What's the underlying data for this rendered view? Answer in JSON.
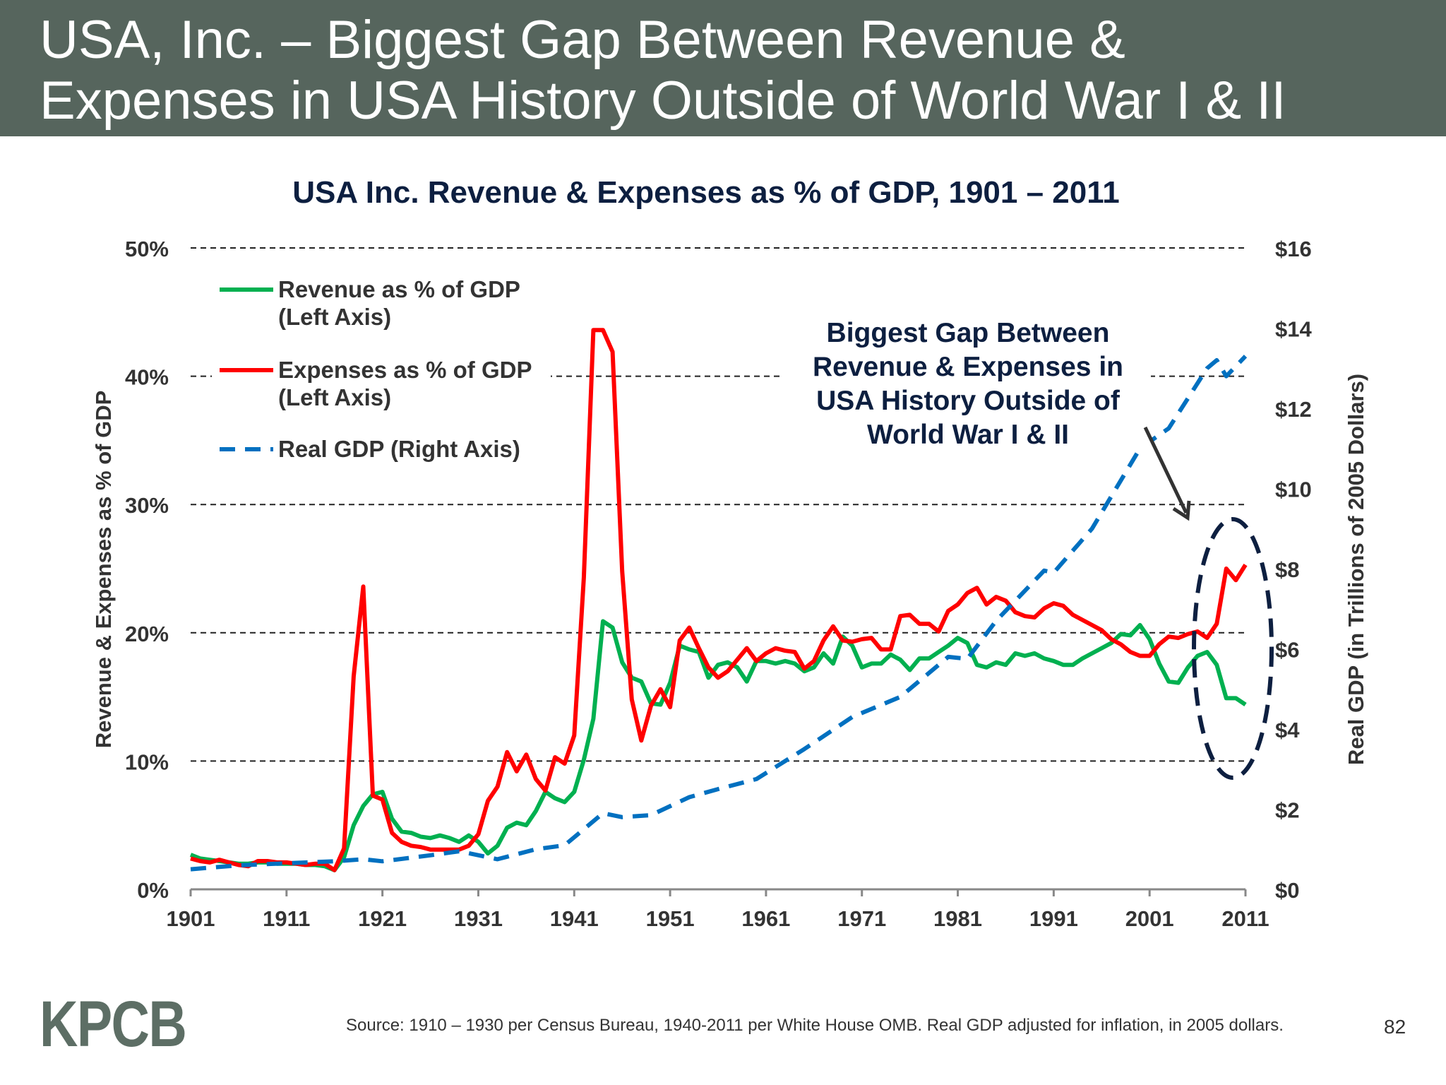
{
  "slide": {
    "title_line1": "USA, Inc. – Biggest Gap Between Revenue &",
    "title_line2": "Expenses in USA History Outside of World War I & II",
    "logo": "KPCB",
    "source": "Source: 1910 – 1930 per Census Bureau, 1940-2011 per White House OMB. Real GDP adjusted for inflation, in 2005 dollars.",
    "page_number": "82",
    "header_color": "#56655d"
  },
  "chart_data": {
    "type": "line",
    "title": "USA Inc. Revenue & Expenses as % of GDP, 1901 – 2011",
    "ylabel": "Revenue & Expenses as % of GDP",
    "y2label": "Real GDP (in Trillions of 2005 Dollars)",
    "xlim": [
      1901,
      2011
    ],
    "ylim": [
      0,
      50
    ],
    "y2lim": [
      0,
      16
    ],
    "x_ticks": [
      "1901",
      "1911",
      "1921",
      "1931",
      "1941",
      "1951",
      "1961",
      "1971",
      "1981",
      "1991",
      "2001",
      "2011"
    ],
    "y_ticks": [
      "0%",
      "10%",
      "20%",
      "30%",
      "40%",
      "50%"
    ],
    "y2_ticks": [
      "$0",
      "$2",
      "$4",
      "$6",
      "$8",
      "$10",
      "$12",
      "$14",
      "$16"
    ],
    "grid": "horizontal dashed",
    "legend_position": "top-left",
    "annotation": [
      "Biggest Gap Between",
      "Revenue & Expenses in",
      "USA History Outside of",
      "World War I & II"
    ],
    "series": [
      {
        "name": "Revenue as % of GDP",
        "name_line2": "(Left Axis)",
        "color": "#00b050",
        "axis": "left",
        "start_year": 1901,
        "values": [
          2.7,
          2.4,
          2.3,
          2.2,
          2.1,
          2.0,
          2.0,
          2.1,
          2.1,
          2.0,
          2.0,
          2.0,
          1.9,
          1.9,
          1.8,
          1.5,
          2.5,
          5.0,
          6.5,
          7.4,
          7.6,
          5.5,
          4.5,
          4.4,
          4.1,
          4.0,
          4.2,
          4.0,
          3.7,
          4.2,
          3.7,
          2.8,
          3.4,
          4.8,
          5.2,
          5.0,
          6.1,
          7.6,
          7.1,
          6.8,
          7.6,
          10.1,
          13.3,
          20.9,
          20.4,
          17.7,
          16.5,
          16.2,
          14.5,
          14.4,
          16.1,
          19.0,
          18.7,
          18.5,
          16.5,
          17.5,
          17.7,
          17.3,
          16.2,
          17.8,
          17.8,
          17.6,
          17.8,
          17.6,
          17.0,
          17.3,
          18.4,
          17.6,
          19.7,
          19.0,
          17.3,
          17.6,
          17.6,
          18.3,
          17.9,
          17.1,
          18.0,
          18.0,
          18.5,
          19.0,
          19.6,
          19.2,
          17.5,
          17.3,
          17.7,
          17.5,
          18.4,
          18.2,
          18.4,
          18.0,
          17.8,
          17.5,
          17.5,
          18.0,
          18.4,
          18.8,
          19.2,
          19.9,
          19.8,
          20.6,
          19.5,
          17.6,
          16.2,
          16.1,
          17.3,
          18.2,
          18.5,
          17.5,
          14.9,
          14.9,
          14.4
        ]
      },
      {
        "name": "Expenses as % of GDP",
        "name_line2": "(Left Axis)",
        "color": "#ff0000",
        "axis": "left",
        "start_year": 1901,
        "values": [
          2.4,
          2.2,
          2.1,
          2.3,
          2.1,
          1.9,
          1.8,
          2.2,
          2.2,
          2.1,
          2.1,
          2.0,
          1.9,
          2.0,
          2.0,
          1.5,
          3.2,
          16.6,
          23.6,
          7.3,
          7.0,
          4.4,
          3.7,
          3.4,
          3.3,
          3.1,
          3.1,
          3.1,
          3.1,
          3.4,
          4.3,
          6.9,
          8.0,
          10.7,
          9.2,
          10.5,
          8.6,
          7.7,
          10.3,
          9.8,
          12.0,
          24.3,
          43.6,
          43.6,
          41.9,
          24.8,
          14.8,
          11.6,
          14.3,
          15.6,
          14.2,
          19.4,
          20.4,
          18.8,
          17.3,
          16.5,
          17.0,
          17.9,
          18.8,
          17.8,
          18.4,
          18.8,
          18.6,
          18.5,
          17.2,
          17.8,
          19.4,
          20.5,
          19.4,
          19.3,
          19.5,
          19.6,
          18.7,
          18.7,
          21.3,
          21.4,
          20.7,
          20.7,
          20.1,
          21.7,
          22.2,
          23.1,
          23.5,
          22.2,
          22.8,
          22.5,
          21.6,
          21.3,
          21.2,
          21.9,
          22.3,
          22.1,
          21.4,
          21.0,
          20.6,
          20.2,
          19.5,
          19.1,
          18.5,
          18.2,
          18.2,
          19.1,
          19.7,
          19.6,
          19.9,
          20.1,
          19.6,
          20.7,
          25.0,
          24.1,
          25.3
        ]
      },
      {
        "name": "Real GDP (Right Axis)",
        "color": "#0070c0",
        "axis": "right",
        "dashed": true,
        "x": [
          1901,
          1906,
          1911,
          1916,
          1919,
          1921,
          1926,
          1929,
          1933,
          1937,
          1940,
          1944,
          1946,
          1949,
          1953,
          1956,
          1960,
          1965,
          1970,
          1975,
          1980,
          1982,
          1985,
          1990,
          1991,
          1995,
          2000,
          2003,
          2007,
          2008,
          2009,
          2011
        ],
        "values": [
          0.5,
          0.6,
          0.65,
          0.7,
          0.75,
          0.7,
          0.85,
          0.95,
          0.75,
          1.0,
          1.1,
          1.9,
          1.8,
          1.85,
          2.3,
          2.5,
          2.75,
          3.5,
          4.3,
          4.8,
          5.8,
          5.75,
          6.7,
          7.95,
          7.9,
          9.0,
          11.0,
          11.5,
          13.0,
          13.2,
          12.8,
          13.3
        ]
      }
    ]
  }
}
